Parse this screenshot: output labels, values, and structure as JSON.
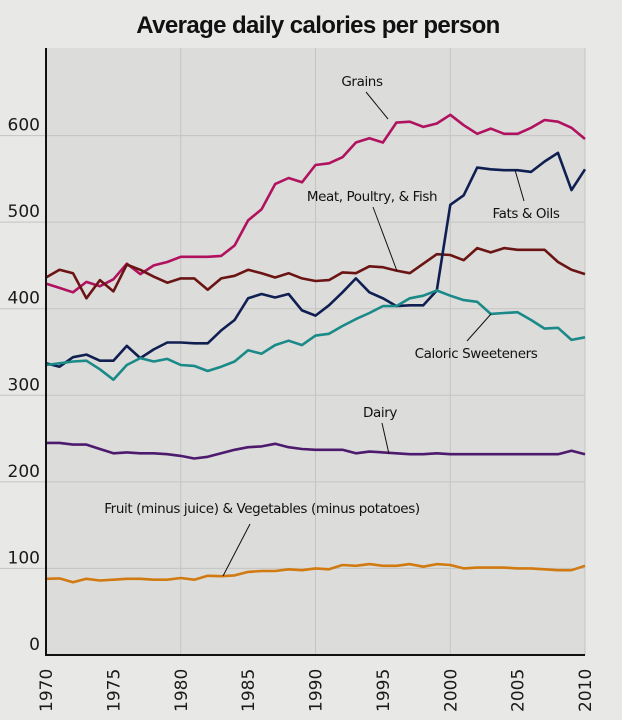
{
  "chart_data": {
    "type": "line",
    "title": "Average daily calories per person",
    "xlabel": "",
    "ylabel": "",
    "xlim": [
      1970,
      2010
    ],
    "ylim": [
      0,
      700
    ],
    "grid": true,
    "x_ticks": [
      "1970",
      "1975",
      "1980",
      "1985",
      "1990",
      "1995",
      "2000",
      "2005",
      "2010"
    ],
    "y_ticks": [
      "0",
      "100",
      "200",
      "300",
      "400",
      "500",
      "600"
    ],
    "x": [
      1970,
      1971,
      1972,
      1973,
      1974,
      1975,
      1976,
      1977,
      1978,
      1979,
      1980,
      1981,
      1982,
      1983,
      1984,
      1985,
      1986,
      1987,
      1988,
      1989,
      1990,
      1991,
      1992,
      1993,
      1994,
      1995,
      1996,
      1997,
      1998,
      1999,
      2000,
      2001,
      2002,
      2003,
      2004,
      2005,
      2006,
      2007,
      2008,
      2009,
      2010
    ],
    "series": [
      {
        "name": "Grains",
        "color": "#b0125f",
        "values": [
          429,
          424,
          419,
          431,
          426,
          434,
          452,
          440,
          450,
          454,
          460,
          460,
          460,
          461,
          473,
          502,
          515,
          544,
          551,
          546,
          566,
          568,
          575,
          592,
          597,
          592,
          615,
          616,
          610,
          614,
          624,
          612,
          602,
          608,
          602,
          602,
          609,
          618,
          616,
          609,
          596
        ]
      },
      {
        "name": "Meat, Poultry, & Fish",
        "color": "#6b1414",
        "values": [
          436,
          445,
          441,
          412,
          433,
          420,
          451,
          445,
          437,
          430,
          435,
          435,
          422,
          435,
          438,
          445,
          441,
          436,
          441,
          435,
          432,
          433,
          442,
          441,
          449,
          448,
          444,
          441,
          452,
          463,
          462,
          456,
          470,
          465,
          470,
          468,
          468,
          468,
          454,
          445,
          440
        ]
      },
      {
        "name": "Fats & Oils",
        "color": "#0f1f52",
        "values": [
          337,
          333,
          344,
          347,
          340,
          340,
          357,
          343,
          353,
          361,
          361,
          360,
          360,
          375,
          387,
          412,
          417,
          413,
          417,
          398,
          392,
          404,
          419,
          435,
          419,
          412,
          403,
          404,
          404,
          421,
          520,
          531,
          563,
          561,
          560,
          560,
          558,
          570,
          580,
          537,
          561
        ]
      },
      {
        "name": "Caloric Sweeteners",
        "color": "#1a8a88",
        "values": [
          335,
          337,
          339,
          340,
          330,
          318,
          335,
          343,
          339,
          342,
          335,
          334,
          328,
          333,
          339,
          352,
          348,
          358,
          363,
          358,
          369,
          371,
          380,
          388,
          395,
          403,
          403,
          412,
          415,
          421,
          415,
          410,
          408,
          394,
          395,
          396,
          387,
          377,
          378,
          364,
          367
        ]
      },
      {
        "name": "Dairy",
        "color": "#4d1a6e",
        "values": [
          245,
          245,
          243,
          243,
          238,
          233,
          234,
          233,
          233,
          232,
          230,
          227,
          229,
          233,
          237,
          240,
          241,
          244,
          240,
          238,
          237,
          237,
          237,
          233,
          235,
          234,
          233,
          232,
          232,
          233,
          232,
          232,
          232,
          232,
          232,
          232,
          232,
          232,
          232,
          236,
          232
        ]
      },
      {
        "name": "Fruit (minus juice) & Vegetables (minus potatoes)",
        "color": "#d07a10",
        "values": [
          88,
          88.5,
          84,
          88,
          86,
          87,
          88,
          88,
          87,
          87,
          89,
          87,
          91.5,
          91,
          92,
          96,
          97,
          97,
          99,
          98,
          100,
          99,
          104,
          103,
          105,
          103,
          103,
          105,
          102,
          105,
          104,
          100,
          101,
          101,
          101,
          100,
          100,
          99,
          98,
          98,
          103
        ]
      }
    ],
    "annotations": [
      {
        "text": "Grains",
        "series": "Grains"
      },
      {
        "text": "Meat, Poultry, & Fish",
        "series": "Meat, Poultry, & Fish"
      },
      {
        "text": "Fats & Oils",
        "series": "Fats & Oils"
      },
      {
        "text": "Caloric Sweeteners",
        "series": "Caloric Sweeteners"
      },
      {
        "text": "Dairy",
        "series": "Dairy"
      },
      {
        "text": "Fruit (minus juice) & Vegetables (minus potatoes)",
        "series": "Fruit (minus juice) & Vegetables (minus potatoes)"
      }
    ]
  },
  "colors": {
    "background": "#e8e8e7",
    "plot_background": "#dcdcda",
    "grid": "#c4c4c2",
    "axis": "#111111"
  }
}
